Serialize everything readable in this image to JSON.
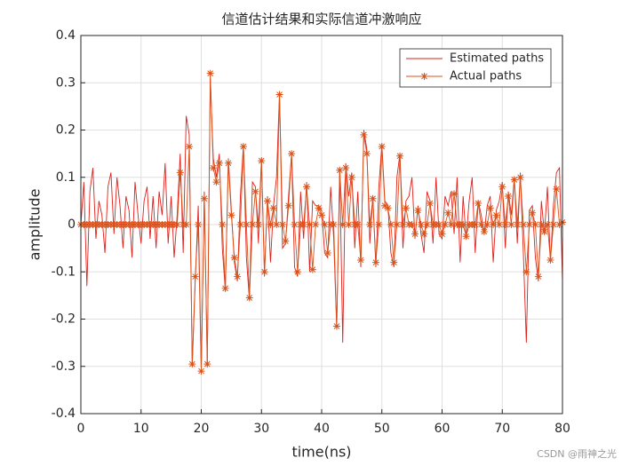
{
  "chart_data": {
    "type": "line",
    "title": "信道估计结果和实际信道冲激响应",
    "xlabel": "time(ns)",
    "ylabel": "amplitude",
    "x": [
      0,
      0.5,
      1,
      1.5,
      2,
      2.5,
      3,
      3.5,
      4,
      4.5,
      5,
      5.5,
      6,
      6.5,
      7,
      7.5,
      8,
      8.5,
      9,
      9.5,
      10,
      10.5,
      11,
      11.5,
      12,
      12.5,
      13,
      13.5,
      14,
      14.5,
      15,
      15.5,
      16,
      16.5,
      17,
      17.5,
      18,
      18.5,
      19,
      19.5,
      20,
      20.5,
      21,
      21.5,
      22,
      22.5,
      23,
      23.5,
      24,
      24.5,
      25,
      25.5,
      26,
      26.5,
      27,
      27.5,
      28,
      28.5,
      29,
      29.5,
      30,
      30.5,
      31,
      31.5,
      32,
      32.5,
      33,
      33.5,
      34,
      34.5,
      35,
      35.5,
      36,
      36.5,
      37,
      37.5,
      38,
      38.5,
      39,
      39.5,
      40,
      40.5,
      41,
      41.5,
      42,
      42.5,
      43,
      43.5,
      44,
      44.5,
      45,
      45.5,
      46,
      46.5,
      47,
      47.5,
      48,
      48.5,
      49,
      49.5,
      50,
      50.5,
      51,
      51.5,
      52,
      52.5,
      53,
      53.5,
      54,
      54.5,
      55,
      55.5,
      56,
      56.5,
      57,
      57.5,
      58,
      58.5,
      59,
      59.5,
      60,
      60.5,
      61,
      61.5,
      62,
      62.5,
      63,
      63.5,
      64,
      64.5,
      65,
      65.5,
      66,
      66.5,
      67,
      67.5,
      68,
      68.5,
      69,
      69.5,
      70,
      70.5,
      71,
      71.5,
      72,
      72.5,
      73,
      73.5,
      74,
      74.5,
      75,
      75.5,
      76,
      76.5,
      77,
      77.5,
      78,
      78.5,
      79,
      79.5,
      80
    ],
    "series": [
      {
        "name": "Estimated paths",
        "color": "#e0201a",
        "marker": "none",
        "values": [
          0,
          0.09,
          -0.13,
          0.07,
          0.12,
          -0.03,
          0.05,
          0.02,
          -0.06,
          0.08,
          0.11,
          -0.02,
          0.1,
          0.04,
          -0.05,
          0.06,
          0.03,
          -0.07,
          0.09,
          0.02,
          -0.04,
          0.05,
          0.08,
          -0.03,
          0.06,
          -0.05,
          0.07,
          0.02,
          0.13,
          -0.04,
          0.06,
          -0.07,
          0.02,
          0.15,
          -0.06,
          0.23,
          0.19,
          -0.3,
          -0.12,
          0.04,
          -0.31,
          0.07,
          -0.3,
          0.31,
          0.14,
          0.1,
          0.15,
          -0.05,
          -0.14,
          0.14,
          0.03,
          -0.08,
          -0.12,
          0.06,
          0.17,
          -0.07,
          -0.16,
          0.09,
          0.08,
          -0.04,
          0.14,
          -0.11,
          0.06,
          -0.08,
          0.04,
          0.1,
          0.28,
          -0.05,
          -0.04,
          0.06,
          0.15,
          -0.09,
          -0.11,
          0.07,
          -0.03,
          0.09,
          -0.1,
          0.05,
          0.04,
          0.04,
          0.03,
          -0.06,
          -0.07,
          0.08,
          -0.03,
          -0.22,
          0.12,
          -0.25,
          0.13,
          0.06,
          0.11,
          -0.05,
          0.07,
          -0.09,
          0.2,
          0.16,
          -0.04,
          0.06,
          -0.09,
          0.08,
          0.17,
          0.05,
          0.04,
          -0.06,
          -0.09,
          0.1,
          0.15,
          -0.05,
          0.05,
          0.06,
          0.1,
          -0.03,
          0.04,
          -0.02,
          -0.06,
          0.07,
          0.05,
          -0.04,
          0.1,
          -0.02,
          -0.03,
          0.06,
          0.04,
          0.07,
          -0.02,
          0.1,
          -0.08,
          0.06,
          -0.03,
          0.05,
          0.1,
          -0.06,
          0.05,
          0.02,
          -0.02,
          0.04,
          0.06,
          -0.08,
          0.03,
          0.05,
          0.09,
          -0.05,
          0.07,
          0.02,
          0.1,
          -0.04,
          0.11,
          -0.06,
          -0.25,
          0.03,
          0.04,
          -0.07,
          -0.12,
          0.05,
          -0.02,
          0.08,
          -0.08,
          0.04,
          0.11,
          0.12,
          -0.12
        ]
      },
      {
        "name": "Actual paths",
        "color": "#d95319",
        "marker": "asterisk",
        "values": [
          0,
          0,
          0,
          0,
          0,
          0,
          0,
          0,
          0,
          0,
          0,
          0,
          0,
          0,
          0,
          0,
          0,
          0,
          0,
          0,
          0,
          0,
          0,
          0,
          0,
          0,
          0,
          0,
          0,
          0,
          0,
          0,
          0,
          0.11,
          0,
          0,
          0.165,
          -0.295,
          -0.11,
          0,
          -0.31,
          0.055,
          -0.295,
          0.32,
          0.12,
          0.09,
          0.13,
          0,
          -0.135,
          0.13,
          0.02,
          -0.07,
          -0.11,
          0,
          0.165,
          0,
          -0.155,
          0,
          0.07,
          0,
          0.135,
          -0.1,
          0.05,
          0,
          0.035,
          0,
          0.275,
          0,
          -0.035,
          0.04,
          0.15,
          0,
          -0.1,
          0,
          0,
          0.08,
          0,
          -0.095,
          0,
          0.035,
          0.02,
          0,
          -0.06,
          0,
          0,
          -0.215,
          0.115,
          0,
          0.12,
          0,
          0.1,
          0,
          0,
          -0.075,
          0.19,
          0.15,
          0,
          0.055,
          -0.08,
          0,
          0.165,
          0.04,
          0.035,
          0,
          -0.08,
          0,
          0.145,
          0,
          0.035,
          0,
          0,
          -0.02,
          0.03,
          0,
          -0.02,
          0,
          0.045,
          0,
          0,
          0,
          -0.02,
          0,
          0.025,
          0,
          0.065,
          0,
          0,
          0,
          -0.025,
          0,
          0,
          0,
          0.045,
          0,
          -0.015,
          0,
          0.035,
          0,
          0.02,
          0,
          0.08,
          0,
          0.06,
          0,
          0.095,
          0,
          0.1,
          0,
          -0.1,
          0,
          0.025,
          0,
          -0.11,
          0,
          -0.015,
          0,
          -0.075,
          0,
          0.075,
          0,
          0.005
        ]
      }
    ],
    "xlim": [
      0,
      80
    ],
    "xticks": [
      0,
      10,
      20,
      30,
      40,
      50,
      60,
      70,
      80
    ],
    "ylim": [
      -0.4,
      0.4
    ],
    "yticks": [
      -0.4,
      -0.3,
      -0.2,
      -0.1,
      0,
      0.1,
      0.2,
      0.3,
      0.4
    ],
    "grid": true,
    "legend": "upper right",
    "watermark": "CSDN @雨神之光"
  }
}
